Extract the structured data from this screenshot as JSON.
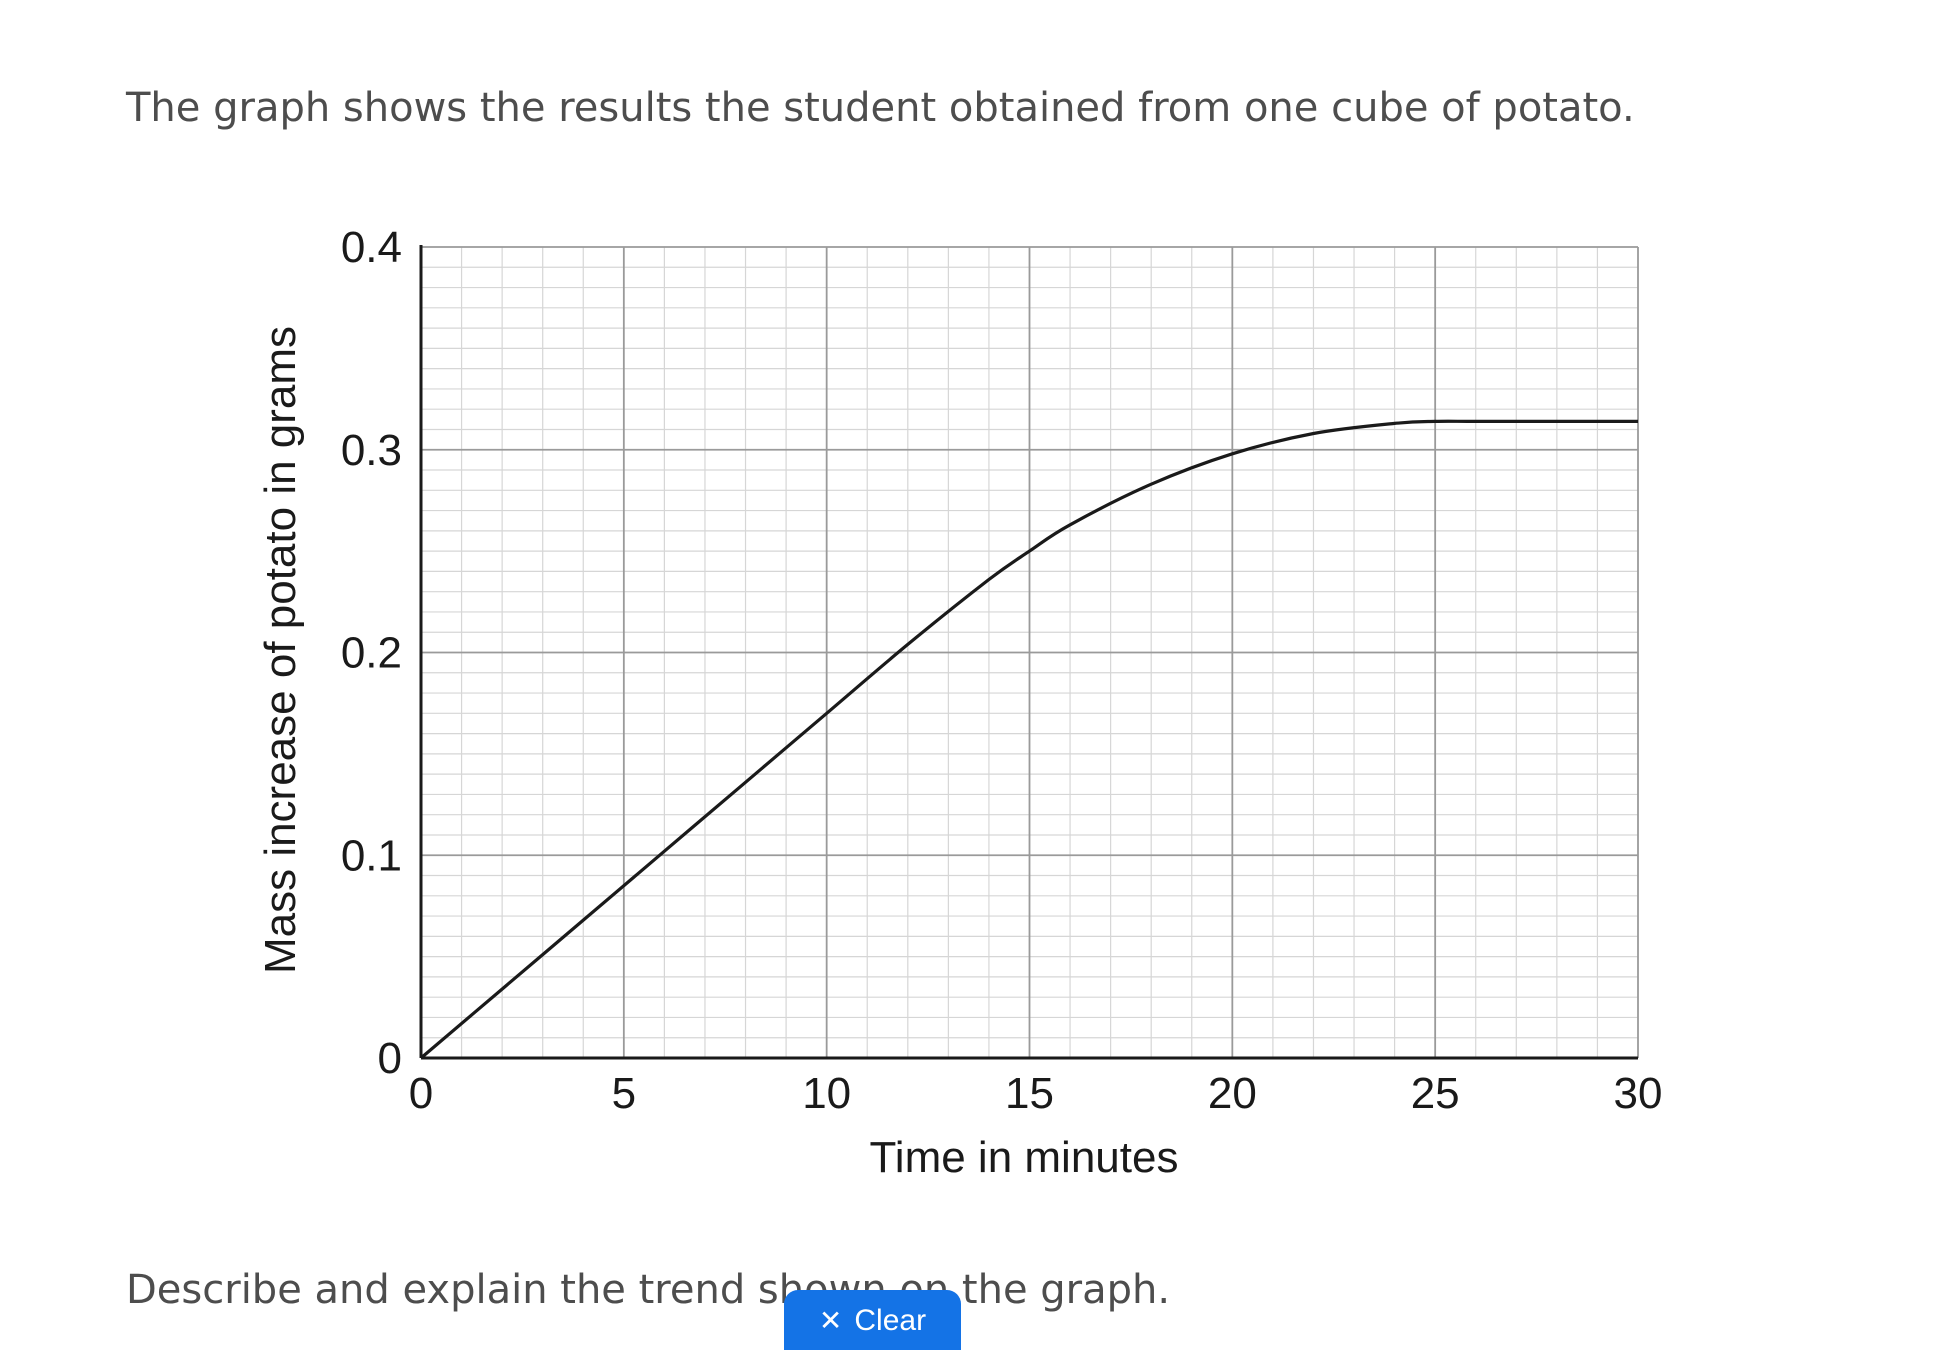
{
  "intro": "The graph shows the results the student obtained from one cube of potato.",
  "question": "Describe and explain the trend shown on the graph.",
  "clear_button": {
    "label": "Clear",
    "icon": "close-icon",
    "color": "#1473e6"
  },
  "chart_data": {
    "type": "line",
    "title": "",
    "xlabel": "Time in minutes",
    "ylabel": "Mass increase of potato in grams",
    "xlim": [
      0,
      30
    ],
    "ylim": [
      0,
      0.4
    ],
    "x_ticks": [
      0,
      5,
      10,
      15,
      20,
      25,
      30
    ],
    "y_ticks": [
      0,
      0.1,
      0.2,
      0.3,
      0.4
    ],
    "x_tick_labels": [
      "0",
      "5",
      "10",
      "15",
      "20",
      "25",
      "30"
    ],
    "y_tick_labels": [
      "0",
      "0.1",
      "0.2",
      "0.3",
      "0.4"
    ],
    "grid": "graph paper (minor every 1 minute and 0.01 g, major every 5 minutes and 0.1 g)",
    "series": [
      {
        "x": [
          0,
          2,
          4,
          6,
          8,
          10,
          12,
          14,
          15,
          16,
          18,
          20,
          22,
          24,
          25,
          26,
          28,
          30
        ],
        "y": [
          0,
          0.034,
          0.068,
          0.102,
          0.136,
          0.17,
          0.204,
          0.236,
          0.25,
          0.263,
          0.283,
          0.298,
          0.308,
          0.313,
          0.314,
          0.314,
          0.314,
          0.314
        ]
      }
    ]
  }
}
